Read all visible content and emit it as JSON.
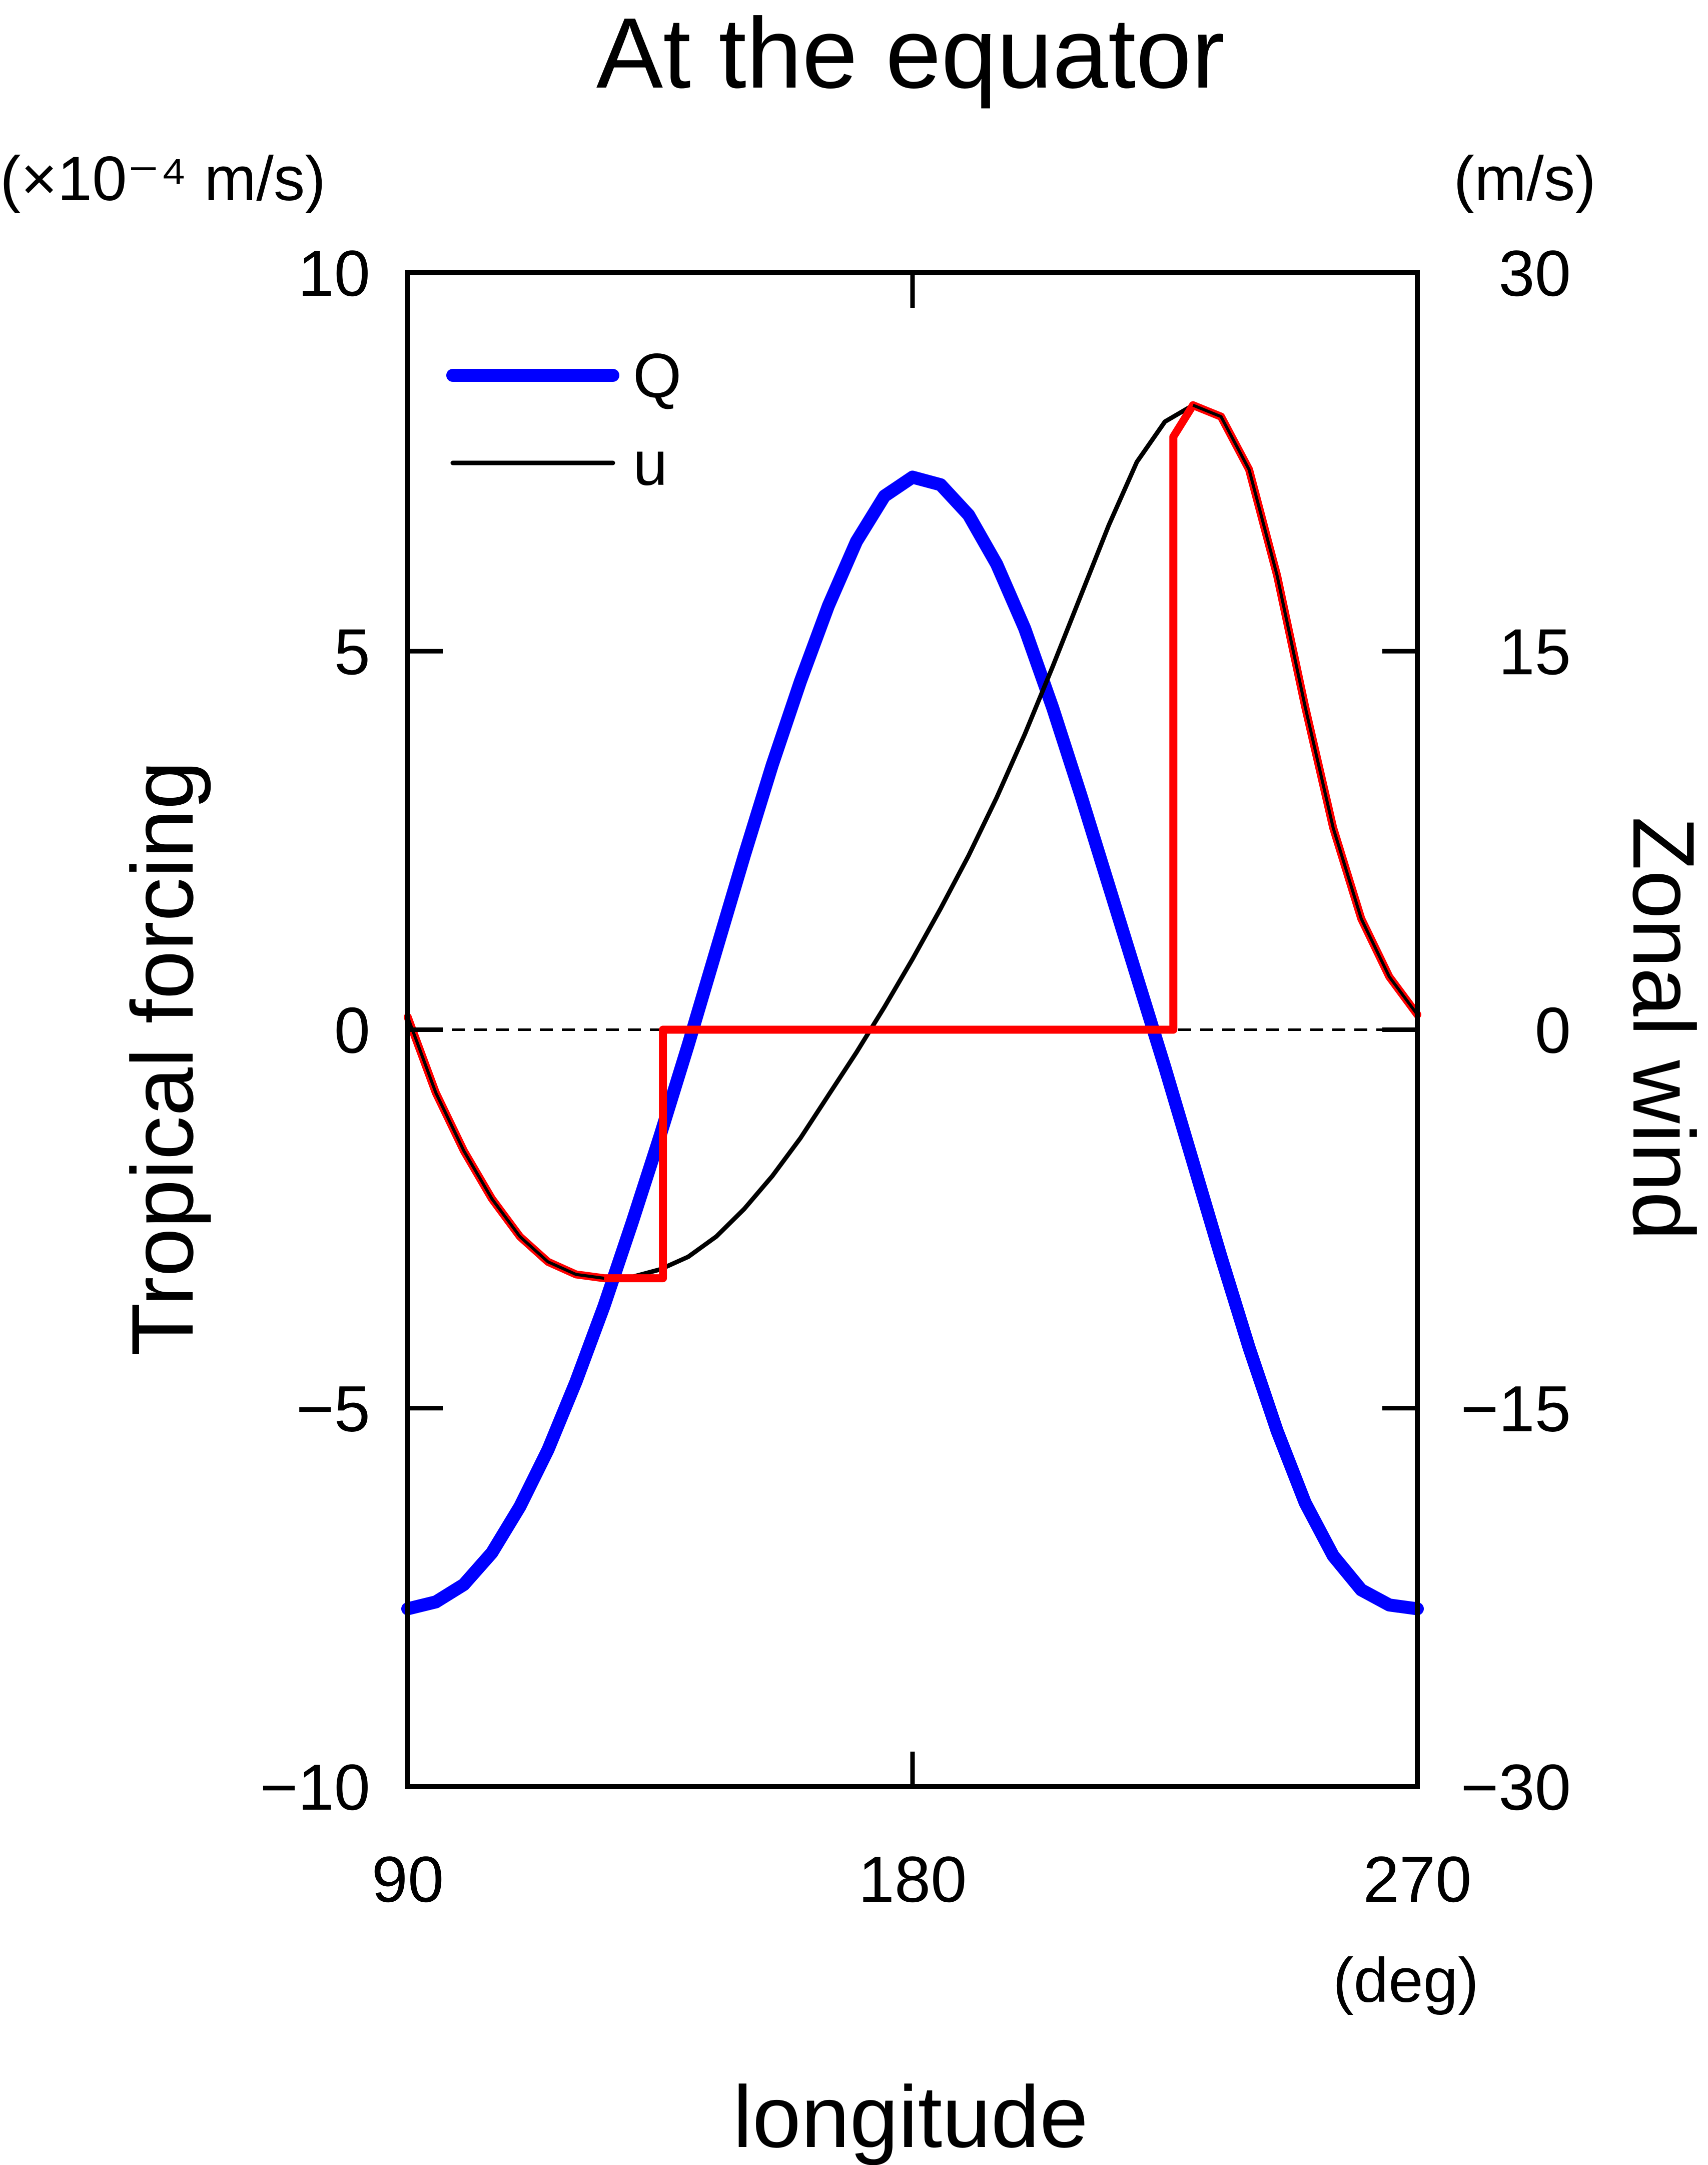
{
  "chart_data": {
    "type": "line",
    "title": "At the equator",
    "xlabel": "longitude",
    "xunit": "(deg)",
    "xlim": [
      90,
      270
    ],
    "xticks": [
      90,
      180,
      270
    ],
    "ylabel_left": "Tropical forcing",
    "yunit_left": "(×10⁻⁴ m/s)",
    "ylim_left": [
      -10,
      10
    ],
    "yticks_left": [
      10,
      5,
      0,
      -5,
      -10
    ],
    "yticklabels_left": [
      "10",
      "5",
      "0",
      "−5",
      "−10"
    ],
    "ylabel_right": "Zonal wind",
    "yunit_right": "(m/s)",
    "ylim_right": [
      -30,
      30
    ],
    "yticks_right": [
      30,
      15,
      0,
      -15,
      -30
    ],
    "yticklabels_right": [
      "30",
      "15",
      "0",
      "−15",
      "−30"
    ],
    "zero_line": "dashed",
    "grid": false,
    "legend_position": "top-left",
    "legend": [
      {
        "label": "Q",
        "color": "#0000ff",
        "style": "thick"
      },
      {
        "label": "u",
        "color": "#000000",
        "style": "thin"
      }
    ],
    "series": [
      {
        "name": "Q",
        "axis": "left",
        "color": "#0000ff",
        "points": [
          [
            90,
            -7.65
          ],
          [
            95,
            -7.56
          ],
          [
            100,
            -7.33
          ],
          [
            105,
            -6.91
          ],
          [
            110,
            -6.3
          ],
          [
            115,
            -5.55
          ],
          [
            120,
            -4.65
          ],
          [
            125,
            -3.65
          ],
          [
            130,
            -2.55
          ],
          [
            135,
            -1.4
          ],
          [
            140,
            -0.2
          ],
          [
            145,
            1.05
          ],
          [
            150,
            2.3
          ],
          [
            155,
            3.5
          ],
          [
            160,
            4.6
          ],
          [
            165,
            5.6
          ],
          [
            170,
            6.45
          ],
          [
            175,
            7.05
          ],
          [
            180,
            7.3
          ],
          [
            185,
            7.2
          ],
          [
            190,
            6.8
          ],
          [
            195,
            6.15
          ],
          [
            200,
            5.3
          ],
          [
            205,
            4.25
          ],
          [
            210,
            3.1
          ],
          [
            215,
            1.9
          ],
          [
            220,
            0.7
          ],
          [
            225,
            -0.5
          ],
          [
            230,
            -1.75
          ],
          [
            235,
            -3.0
          ],
          [
            240,
            -4.2
          ],
          [
            245,
            -5.3
          ],
          [
            250,
            -6.25
          ],
          [
            255,
            -6.95
          ],
          [
            260,
            -7.4
          ],
          [
            265,
            -7.6
          ],
          [
            270,
            -7.65
          ]
        ]
      },
      {
        "name": "u",
        "axis": "right",
        "color": "#000000",
        "points": [
          [
            90,
            0.5
          ],
          [
            95,
            -2.5
          ],
          [
            100,
            -4.8
          ],
          [
            105,
            -6.7
          ],
          [
            110,
            -8.2
          ],
          [
            115,
            -9.2
          ],
          [
            120,
            -9.7
          ],
          [
            125,
            -9.85
          ],
          [
            130,
            -9.8
          ],
          [
            135,
            -9.5
          ],
          [
            140,
            -9.0
          ],
          [
            145,
            -8.2
          ],
          [
            150,
            -7.1
          ],
          [
            155,
            -5.8
          ],
          [
            160,
            -4.3
          ],
          [
            165,
            -2.6
          ],
          [
            170,
            -0.9
          ],
          [
            175,
            0.9
          ],
          [
            180,
            2.8
          ],
          [
            185,
            4.8
          ],
          [
            190,
            6.9
          ],
          [
            195,
            9.2
          ],
          [
            200,
            11.7
          ],
          [
            205,
            14.4
          ],
          [
            210,
            17.2
          ],
          [
            215,
            20.0
          ],
          [
            220,
            22.5
          ],
          [
            225,
            24.1
          ],
          [
            230,
            24.75
          ],
          [
            235,
            24.3
          ],
          [
            240,
            22.2
          ],
          [
            245,
            18.0
          ],
          [
            250,
            12.8
          ],
          [
            255,
            8.0
          ],
          [
            260,
            4.4
          ],
          [
            265,
            2.1
          ],
          [
            270,
            0.6
          ]
        ]
      },
      {
        "name": "",
        "axis": "right",
        "color": "#ff0000",
        "points": [
          [
            90,
            0.5
          ],
          [
            95,
            -2.5
          ],
          [
            100,
            -4.8
          ],
          [
            105,
            -6.7
          ],
          [
            110,
            -8.2
          ],
          [
            115,
            -9.2
          ],
          [
            120,
            -9.7
          ],
          [
            125,
            -9.85
          ],
          [
            135.5,
            -9.85
          ],
          [
            135.5,
            0
          ],
          [
            226.5,
            0
          ],
          [
            226.5,
            23.5
          ],
          [
            230,
            24.75
          ],
          [
            235,
            24.3
          ],
          [
            240,
            22.2
          ],
          [
            245,
            18.0
          ],
          [
            250,
            12.8
          ],
          [
            255,
            8.0
          ],
          [
            260,
            4.4
          ],
          [
            265,
            2.1
          ],
          [
            270,
            0.6
          ]
        ]
      }
    ]
  }
}
